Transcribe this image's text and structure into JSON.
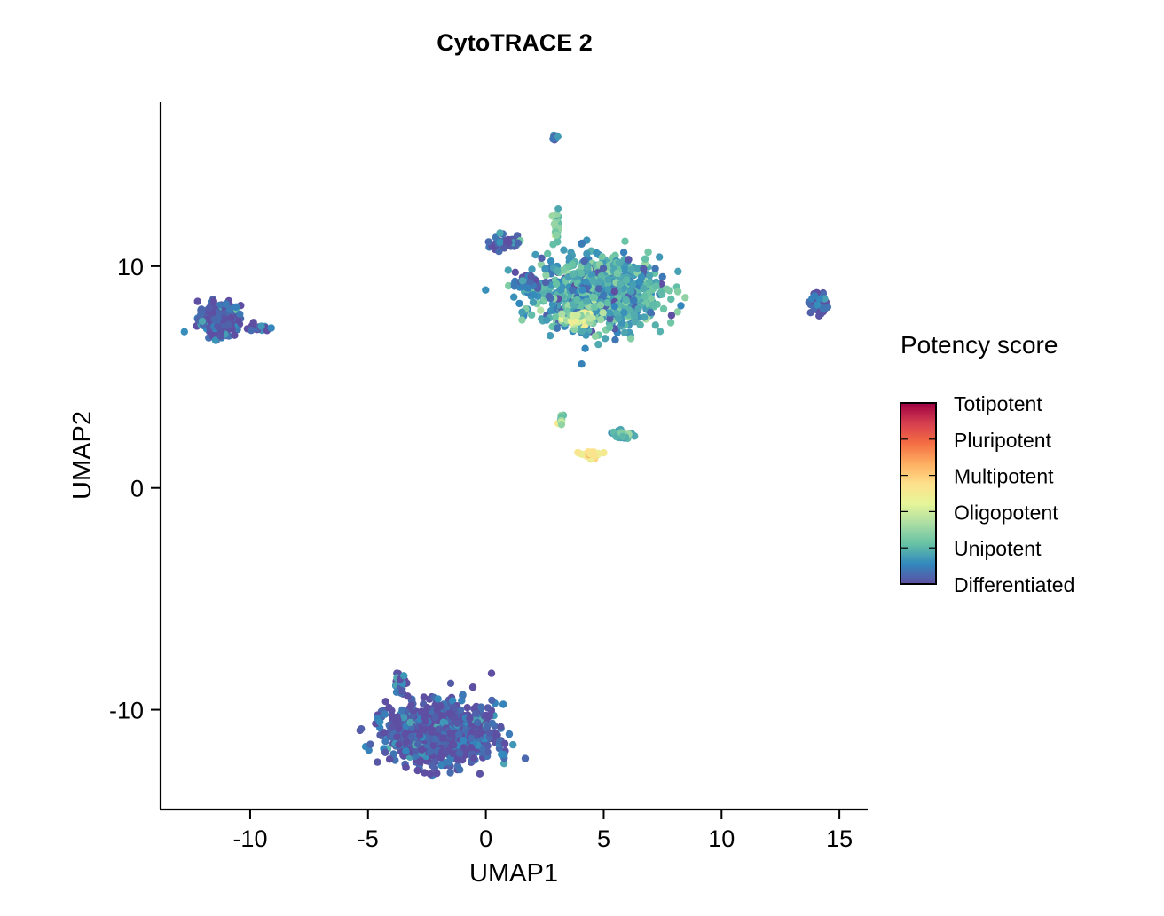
{
  "chart_data": {
    "type": "scatter",
    "title": "CytoTRACE 2",
    "xlabel": "UMAP1",
    "ylabel": "UMAP2",
    "xlim": [
      -13.8,
      16.2
    ],
    "ylim": [
      -14.5,
      17.4
    ],
    "x_ticks": [
      -10,
      -5,
      0,
      5,
      10,
      15
    ],
    "x_tick_labels": [
      "-10",
      "-5",
      "0",
      "5",
      "10",
      "15"
    ],
    "y_ticks": [
      -10,
      0,
      10
    ],
    "y_tick_labels": [
      "-10",
      "0",
      "10"
    ],
    "grid": false,
    "legend": {
      "title": "Potency score",
      "position": "right",
      "labels": [
        "Totipotent",
        "Pluripotent",
        "Multipotent",
        "Oligopotent",
        "Unipotent",
        "Differentiated"
      ],
      "colors": [
        "#9E0142",
        "#D53E4F",
        "#F46D43",
        "#FDAE61",
        "#FEE08B",
        "#E6F598",
        "#ABDDA4",
        "#66C2A5",
        "#3288BD",
        "#5E4FA2"
      ]
    },
    "clusters": [
      {
        "label": "",
        "center": [
          -11.3,
          7.6
        ],
        "spread": [
          0.55,
          0.45
        ],
        "n": 260,
        "potency": 0.02
      },
      {
        "label": "",
        "center": [
          -9.7,
          7.2
        ],
        "spread": [
          0.35,
          0.08
        ],
        "n": 20,
        "potency": 0.03
      },
      {
        "label": "",
        "center": [
          2.9,
          15.8
        ],
        "spread": [
          0.08,
          0.07
        ],
        "n": 12,
        "potency": 0.05
      },
      {
        "label": "",
        "center": [
          3.0,
          11.9
        ],
        "spread": [
          0.08,
          0.45
        ],
        "n": 25,
        "potency": 0.28
      },
      {
        "label": "",
        "center": [
          4.8,
          8.8
        ],
        "spread": [
          1.6,
          1.0
        ],
        "n": 900,
        "potency": 0.16
      },
      {
        "label": "",
        "center": [
          0.8,
          11.1
        ],
        "spread": [
          0.5,
          0.2
        ],
        "n": 40,
        "potency": 0.05
      },
      {
        "label": "",
        "center": [
          1.7,
          9.2
        ],
        "spread": [
          0.4,
          0.3
        ],
        "n": 30,
        "potency": 0.06
      },
      {
        "label": "",
        "center": [
          4.0,
          7.6
        ],
        "spread": [
          0.4,
          0.2
        ],
        "n": 60,
        "potency": 0.38
      },
      {
        "label": "",
        "center": [
          14.1,
          8.3
        ],
        "spread": [
          0.2,
          0.3
        ],
        "n": 60,
        "potency": 0.04
      },
      {
        "label": "",
        "center": [
          3.2,
          3.1
        ],
        "spread": [
          0.08,
          0.12
        ],
        "n": 10,
        "potency": 0.25
      },
      {
        "label": "",
        "center": [
          5.8,
          2.4
        ],
        "spread": [
          0.35,
          0.1
        ],
        "n": 20,
        "potency": 0.2
      },
      {
        "label": "",
        "center": [
          4.5,
          1.5
        ],
        "spread": [
          0.25,
          0.15
        ],
        "n": 25,
        "potency": 0.5
      },
      {
        "label": "",
        "center": [
          -1.9,
          -11.1
        ],
        "spread": [
          1.4,
          0.8
        ],
        "n": 1100,
        "potency": 0.02
      },
      {
        "label": "",
        "center": [
          -3.6,
          -8.9
        ],
        "spread": [
          0.15,
          0.35
        ],
        "n": 50,
        "potency": 0.03
      }
    ]
  }
}
